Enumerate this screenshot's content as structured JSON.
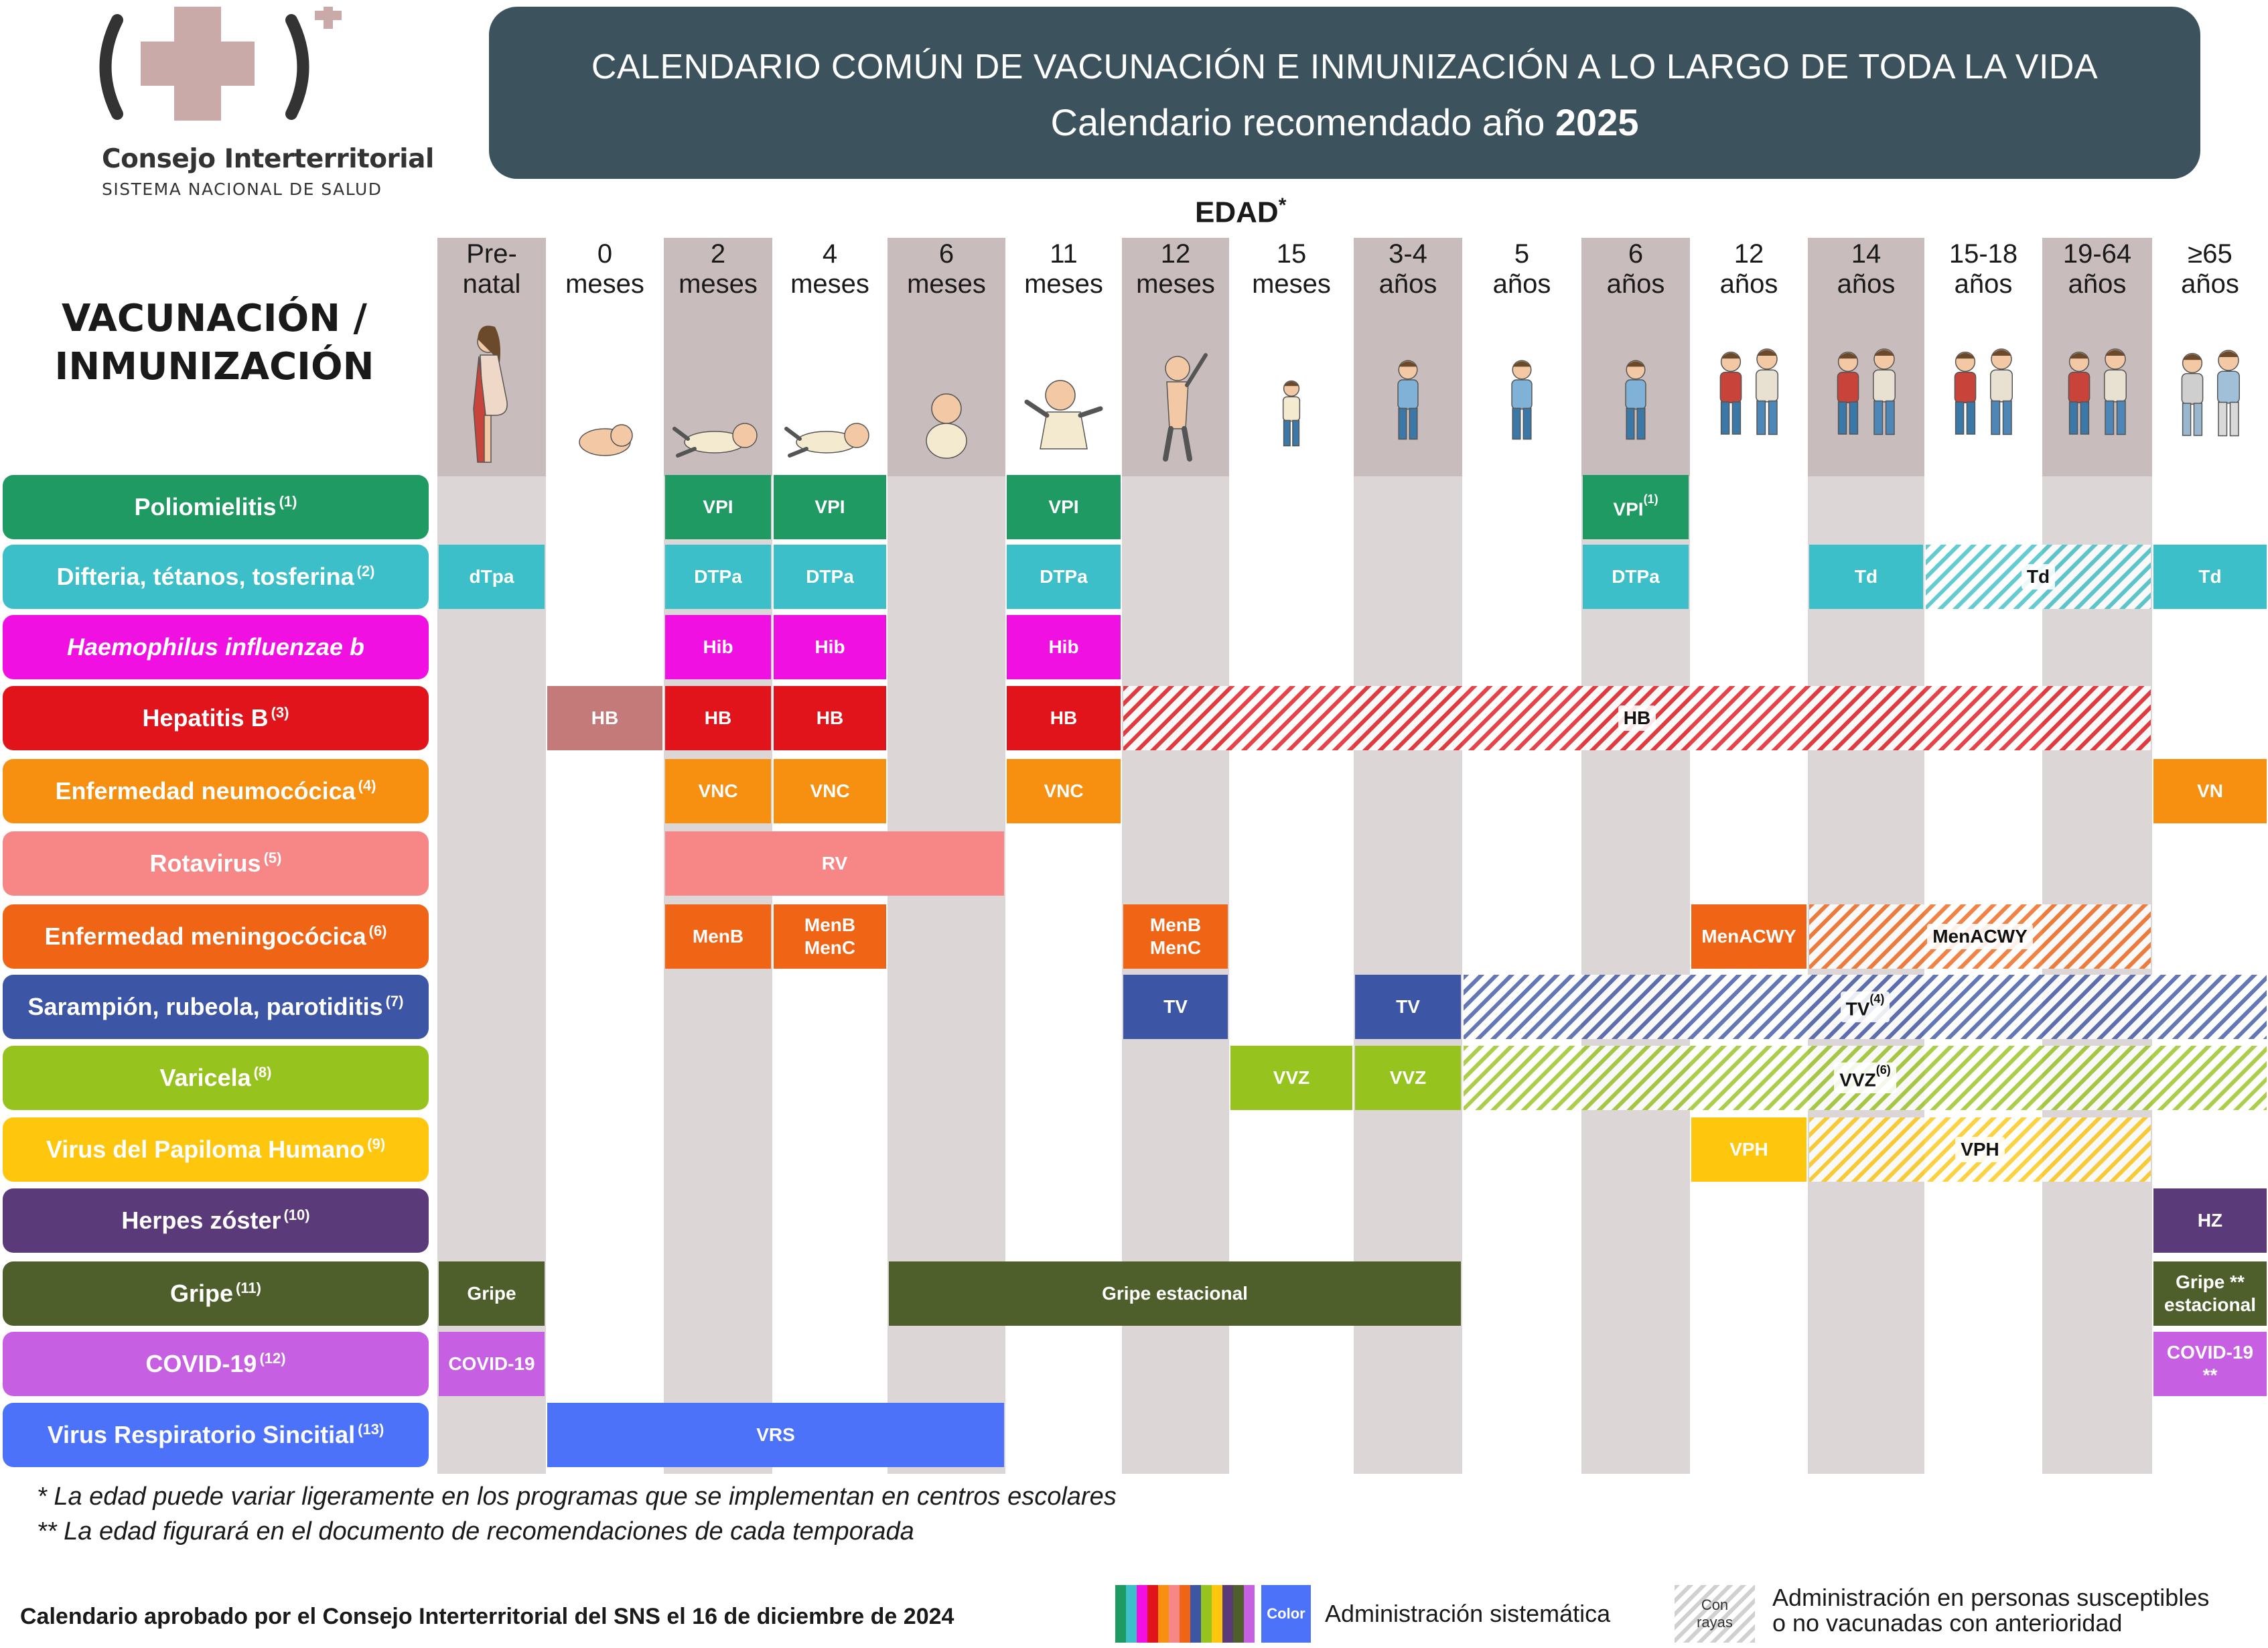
{
  "logo": {
    "name": "Consejo Interterritorial",
    "sub": "SISTEMA NACIONAL DE SALUD"
  },
  "title": {
    "main": "CALENDARIO COMÚN DE VACUNACIÓN E INMUNIZACIÓN A LO LARGO DE TODA LA VIDA",
    "sub_prefix": "Calendario recomendado año ",
    "sub_year": "2025"
  },
  "edad": {
    "label": "EDAD",
    "mark": "*"
  },
  "row_header": {
    "line1": "VACUNACIÓN /",
    "line2": "INMUNIZACIÓN"
  },
  "columns": [
    {
      "l1": "Pre-",
      "l2": "natal",
      "shade": true,
      "fig": "pregnant-woman"
    },
    {
      "l1": "0",
      "l2": "meses",
      "shade": false,
      "fig": "newborn"
    },
    {
      "l1": "2",
      "l2": "meses",
      "shade": true,
      "fig": "baby-lying"
    },
    {
      "l1": "4",
      "l2": "meses",
      "shade": false,
      "fig": "baby-lying"
    },
    {
      "l1": "6",
      "l2": "meses",
      "shade": true,
      "fig": "baby-sitting"
    },
    {
      "l1": "11",
      "l2": "meses",
      "shade": false,
      "fig": "baby-crawling"
    },
    {
      "l1": "12",
      "l2": "meses",
      "shade": true,
      "fig": "toddler-standing"
    },
    {
      "l1": "15",
      "l2": "meses",
      "shade": false,
      "fig": "toddler"
    },
    {
      "l1": "3-4",
      "l2": "años",
      "shade": true,
      "fig": "child"
    },
    {
      "l1": "5",
      "l2": "años",
      "shade": false,
      "fig": "child"
    },
    {
      "l1": "6",
      "l2": "años",
      "shade": true,
      "fig": "child"
    },
    {
      "l1": "12",
      "l2": "años",
      "shade": false,
      "fig": "preteens"
    },
    {
      "l1": "14",
      "l2": "años",
      "shade": true,
      "fig": "teens"
    },
    {
      "l1": "15-18",
      "l2": "años",
      "shade": false,
      "fig": "teens"
    },
    {
      "l1": "19-64",
      "l2": "años",
      "shade": true,
      "fig": "adults"
    },
    {
      "l1": "≥65",
      "l2": "años",
      "shade": false,
      "fig": "elderly"
    }
  ],
  "rows": [
    {
      "name": "Poliomielitis",
      "sup": "(1)",
      "color": "#1f9a62",
      "italic": false
    },
    {
      "name": "Difteria, tétanos, tosferina",
      "sup": "(2)",
      "color": "#3cbfc8",
      "italic": false
    },
    {
      "name": "Haemophilus influenzae b",
      "sup": "",
      "color": "#f010e2",
      "italic": true
    },
    {
      "name": "Hepatitis B",
      "sup": "(3)",
      "color": "#e2141b",
      "italic": false
    },
    {
      "name": "Enfermedad neumocócica",
      "sup": "(4)",
      "color": "#f78f10",
      "italic": false
    },
    {
      "name": "Rotavirus",
      "sup": "(5)",
      "color": "#f78787",
      "italic": false
    },
    {
      "name": "Enfermedad meningocócica",
      "sup": "(6)",
      "color": "#f06416",
      "italic": false
    },
    {
      "name": "Sarampión, rubeola, parotiditis",
      "sup": "(7)",
      "color": "#3d55a5",
      "italic": false
    },
    {
      "name": "Varicela",
      "sup": "(8)",
      "color": "#97c31e",
      "italic": false
    },
    {
      "name": "Virus del Papiloma Humano",
      "sup": "(9)",
      "color": "#fec70e",
      "italic": false
    },
    {
      "name": "Herpes zóster",
      "sup": "(10)",
      "color": "#5b3a7a",
      "italic": false
    },
    {
      "name": "Gripe",
      "sup": "(11)",
      "color": "#4e5f2b",
      "italic": false
    },
    {
      "name": "COVID-19",
      "sup": "(12)",
      "color": "#c75fe2",
      "italic": false
    },
    {
      "name": "Virus Respiratorio Sincitial",
      "sup": "(13)",
      "color": "#4b72f8",
      "italic": false
    }
  ],
  "bars": [
    {
      "row": 0,
      "c0": 2,
      "c1": 2,
      "text": "VPI",
      "sup": ""
    },
    {
      "row": 0,
      "c0": 3,
      "c1": 3,
      "text": "VPI",
      "sup": ""
    },
    {
      "row": 0,
      "c0": 5,
      "c1": 5,
      "text": "VPI",
      "sup": ""
    },
    {
      "row": 0,
      "c0": 10,
      "c1": 10,
      "text": "VPI",
      "sup": "(1)"
    },
    {
      "row": 1,
      "c0": 0,
      "c1": 0,
      "text": "dTpa",
      "sup": ""
    },
    {
      "row": 1,
      "c0": 2,
      "c1": 2,
      "text": "DTPa",
      "sup": ""
    },
    {
      "row": 1,
      "c0": 3,
      "c1": 3,
      "text": "DTPa",
      "sup": ""
    },
    {
      "row": 1,
      "c0": 5,
      "c1": 5,
      "text": "DTPa",
      "sup": ""
    },
    {
      "row": 1,
      "c0": 10,
      "c1": 10,
      "text": "DTPa",
      "sup": ""
    },
    {
      "row": 1,
      "c0": 12,
      "c1": 12,
      "text": "Td",
      "sup": ""
    },
    {
      "row": 1,
      "c0": 13,
      "c1": 14,
      "text": "Td",
      "sup": "",
      "striped": true
    },
    {
      "row": 1,
      "c0": 15,
      "c1": 15,
      "text": "Td",
      "sup": ""
    },
    {
      "row": 2,
      "c0": 2,
      "c1": 2,
      "text": "Hib",
      "sup": ""
    },
    {
      "row": 2,
      "c0": 3,
      "c1": 3,
      "text": "Hib",
      "sup": ""
    },
    {
      "row": 2,
      "c0": 5,
      "c1": 5,
      "text": "Hib",
      "sup": ""
    },
    {
      "row": 3,
      "c0": 1,
      "c1": 1,
      "text": "HB",
      "sup": "",
      "color": "#c47a78"
    },
    {
      "row": 3,
      "c0": 2,
      "c1": 2,
      "text": "HB",
      "sup": ""
    },
    {
      "row": 3,
      "c0": 3,
      "c1": 3,
      "text": "HB",
      "sup": ""
    },
    {
      "row": 3,
      "c0": 5,
      "c1": 5,
      "text": "HB",
      "sup": ""
    },
    {
      "row": 3,
      "c0": 6,
      "c1": 14,
      "text": "HB",
      "sup": "",
      "striped": true
    },
    {
      "row": 4,
      "c0": 2,
      "c1": 2,
      "text": "VNC",
      "sup": ""
    },
    {
      "row": 4,
      "c0": 3,
      "c1": 3,
      "text": "VNC",
      "sup": ""
    },
    {
      "row": 4,
      "c0": 5,
      "c1": 5,
      "text": "VNC",
      "sup": ""
    },
    {
      "row": 4,
      "c0": 15,
      "c1": 15,
      "text": "VN",
      "sup": ""
    },
    {
      "row": 5,
      "c0": 2,
      "c1": 4,
      "text": "RV",
      "sup": ""
    },
    {
      "row": 6,
      "c0": 2,
      "c1": 2,
      "text": "MenB",
      "sup": ""
    },
    {
      "row": 6,
      "c0": 3,
      "c1": 3,
      "text": "MenB\nMenC",
      "sup": ""
    },
    {
      "row": 6,
      "c0": 6,
      "c1": 6,
      "text": "MenB\nMenC",
      "sup": ""
    },
    {
      "row": 6,
      "c0": 11,
      "c1": 11,
      "text": "MenACWY",
      "sup": ""
    },
    {
      "row": 6,
      "c0": 12,
      "c1": 14,
      "text": "MenACWY",
      "sup": "",
      "striped": true
    },
    {
      "row": 7,
      "c0": 6,
      "c1": 6,
      "text": "TV",
      "sup": ""
    },
    {
      "row": 7,
      "c0": 8,
      "c1": 8,
      "text": "TV",
      "sup": ""
    },
    {
      "row": 7,
      "c0": 9,
      "c1": 15,
      "text": "TV",
      "sup": "(4)",
      "striped": true
    },
    {
      "row": 8,
      "c0": 7,
      "c1": 7,
      "text": "VVZ",
      "sup": ""
    },
    {
      "row": 8,
      "c0": 8,
      "c1": 8,
      "text": "VVZ",
      "sup": ""
    },
    {
      "row": 8,
      "c0": 9,
      "c1": 15,
      "text": "VVZ",
      "sup": "(6)",
      "striped": true
    },
    {
      "row": 9,
      "c0": 11,
      "c1": 11,
      "text": "VPH",
      "sup": ""
    },
    {
      "row": 9,
      "c0": 12,
      "c1": 14,
      "text": "VPH",
      "sup": "",
      "striped": true
    },
    {
      "row": 10,
      "c0": 15,
      "c1": 15,
      "text": "HZ",
      "sup": ""
    },
    {
      "row": 11,
      "c0": 0,
      "c1": 0,
      "text": "Gripe",
      "sup": ""
    },
    {
      "row": 11,
      "c0": 4,
      "c1": 8,
      "text": "Gripe estacional",
      "sup": ""
    },
    {
      "row": 11,
      "c0": 15,
      "c1": 15,
      "text": "Gripe **\nestacional",
      "sup": ""
    },
    {
      "row": 12,
      "c0": 0,
      "c1": 0,
      "text": "COVID-19",
      "sup": ""
    },
    {
      "row": 12,
      "c0": 15,
      "c1": 15,
      "text": "COVID-19 **",
      "sup": ""
    },
    {
      "row": 13,
      "c0": 1,
      "c1": 4,
      "text": "VRS",
      "sup": ""
    }
  ],
  "footnotes": {
    "f1": "* La edad puede variar ligeramente en los programas que se implementan en centros escolares",
    "f2": "** La edad figurará en el documento de recomendaciones de cada temporada"
  },
  "approved": "Calendario aprobado por el Consejo Interterritorial del SNS el 16 de diciembre de 2024",
  "legend": {
    "color_box": "Color",
    "color_text": "Administración sistemática",
    "stripe_box": "Con\nrayas",
    "stripe_text1": "Administración en personas susceptibles",
    "stripe_text2": "o no vacunadas con anterioridad",
    "swatches": [
      "#1f9a62",
      "#3cbfc8",
      "#f010e2",
      "#e2141b",
      "#f78f10",
      "#f78787",
      "#f06416",
      "#3d55a5",
      "#97c31e",
      "#fec70e",
      "#5b3a7a",
      "#4e5f2b",
      "#c75fe2"
    ]
  }
}
